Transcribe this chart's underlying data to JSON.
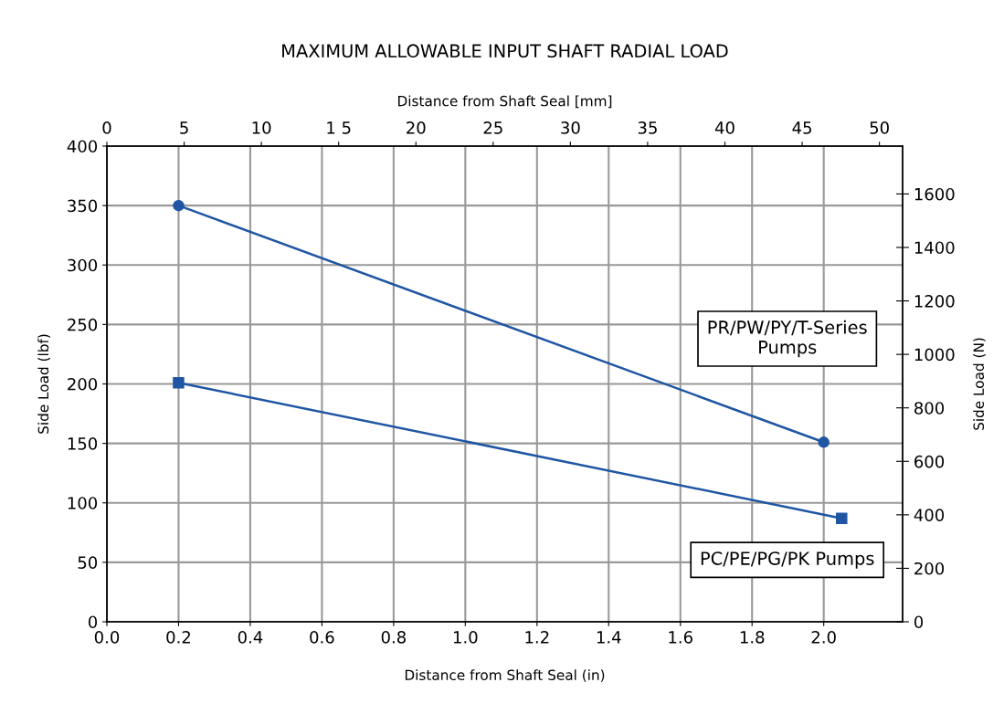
{
  "chart_data": {
    "type": "line",
    "title": "MAXIMUM ALLOWABLE INPUT SHAFT RADIAL LOAD",
    "x2label": "Distance from Shaft Seal [mm]",
    "xlabel": "Distance from Shaft Seal (in)",
    "ylabel": "Side Load (lbf)",
    "y2label": "Side Load (N)",
    "xlim": [
      0,
      2.22
    ],
    "xticks": [
      {
        "value": 0,
        "label": "0.0"
      },
      0.2,
      0.4,
      0.6,
      0.8,
      {
        "value": 1,
        "label": "1.0"
      },
      1.2,
      1.4,
      1.6,
      1.8,
      {
        "value": 2,
        "label": "2.0"
      }
    ],
    "x2lim": [
      0,
      51.5
    ],
    "x2ticks": [
      0,
      5,
      10,
      {
        "value": 15,
        "label": "1 5"
      },
      20,
      25,
      30,
      35,
      40,
      45,
      50
    ],
    "ylim": [
      0,
      400
    ],
    "yticks": [
      0,
      50,
      100,
      150,
      200,
      250,
      300,
      350,
      400
    ],
    "y2lim": [
      0,
      1779
    ],
    "y2ticks": [
      0,
      200,
      400,
      600,
      800,
      1000,
      1200,
      1400,
      1600
    ],
    "grid": true,
    "legend": false,
    "line_style": "solid",
    "series": [
      {
        "name": "PR/PW/PY/T-Series\nPumps",
        "color": "#1f56a3",
        "marker": "circle",
        "x": [
          0.2,
          2.0
        ],
        "values": [
          350,
          151
        ]
      },
      {
        "name": "PC/PE/PG/PK Pumps",
        "color": "#1f56a3",
        "marker": "square",
        "x": [
          0.2,
          2.05
        ],
        "values": [
          201,
          87
        ]
      }
    ]
  }
}
